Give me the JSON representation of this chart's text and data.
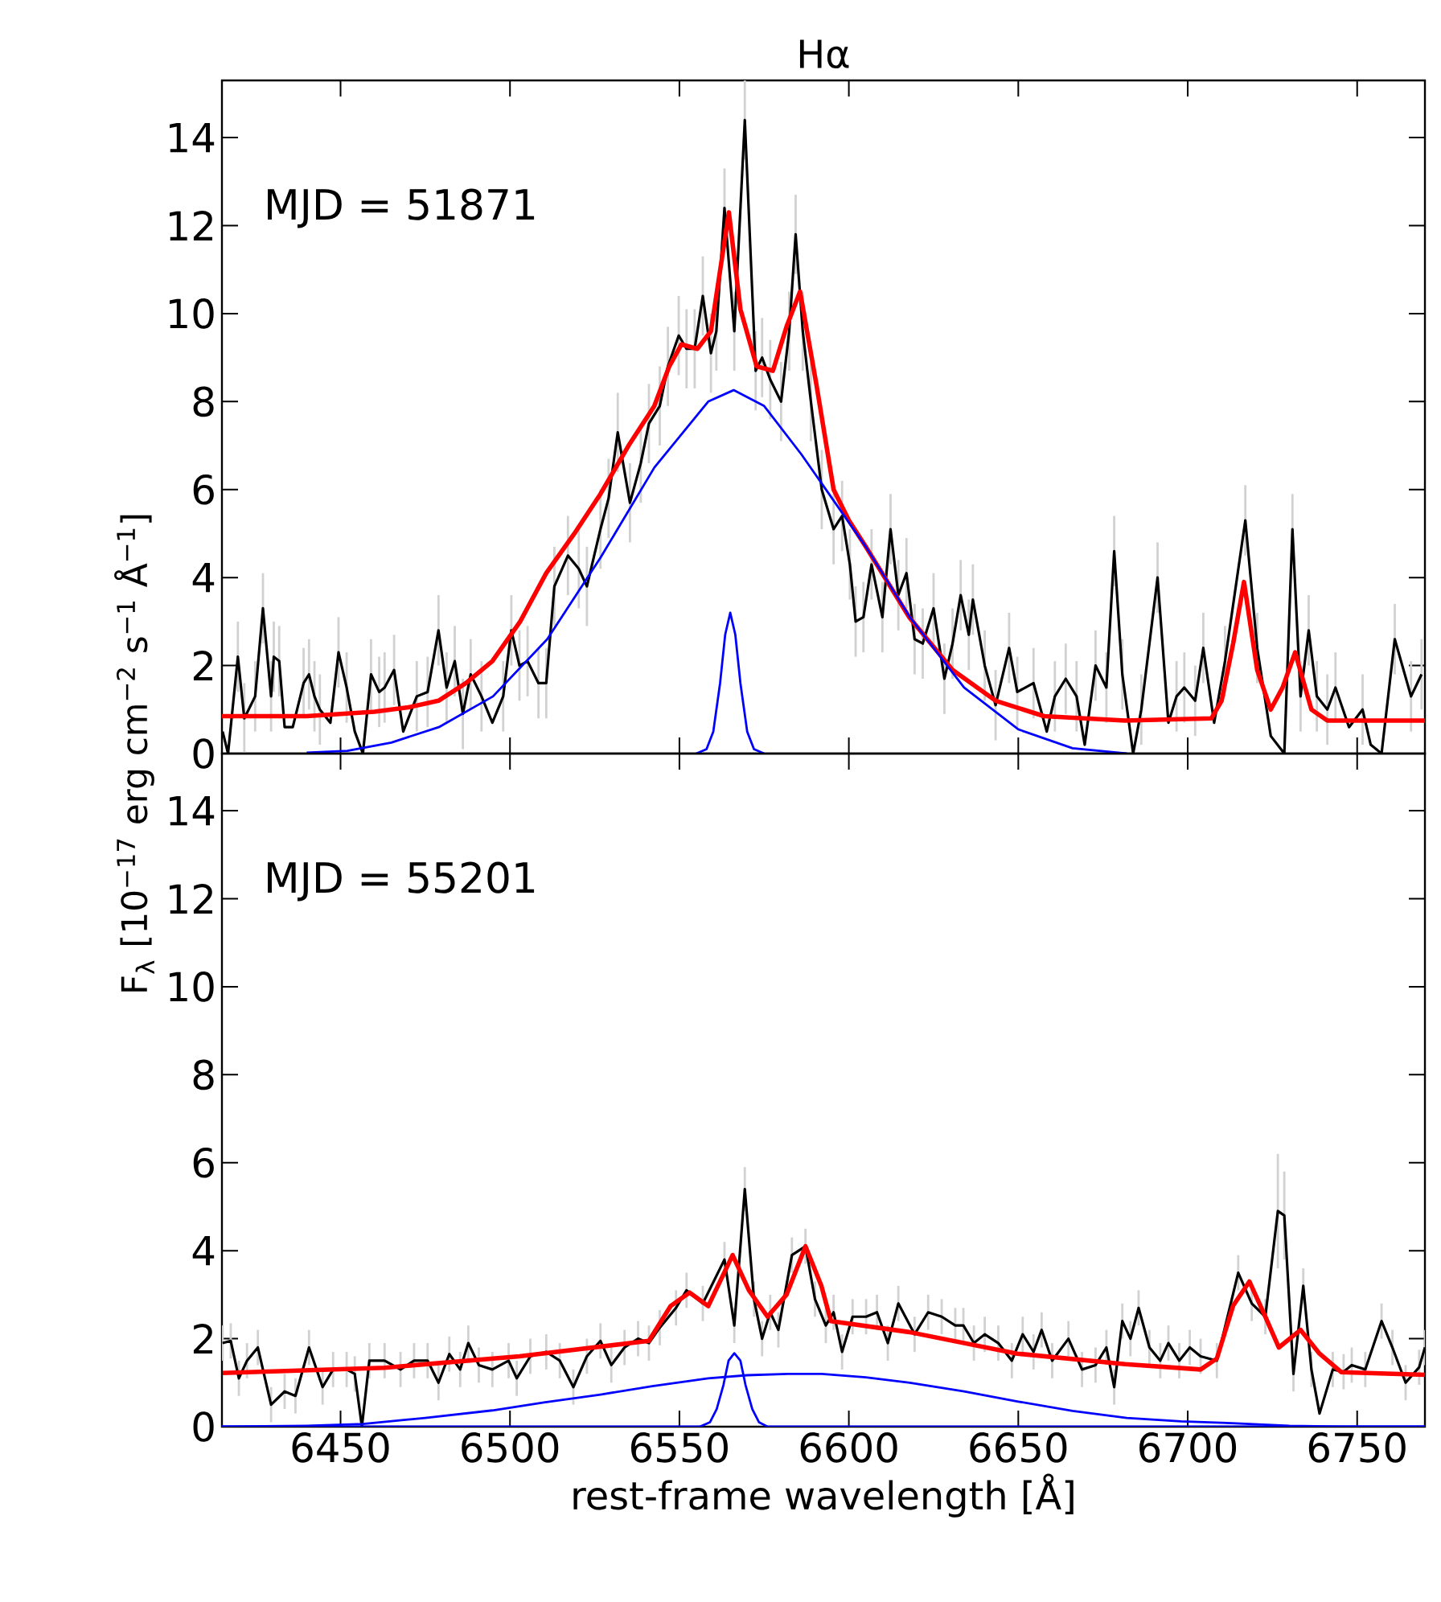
{
  "chart_data": [
    {
      "type": "line",
      "title": "Hα",
      "ylabel": "F$_{λ}$  [10$^{−17}$ erg cm$^{−2}$ s$^{−1}$ Å$^{−1}$]",
      "annotations": [
        "MJD = 51871"
      ],
      "xlim": [
        6415,
        6770
      ],
      "ylim": [
        0,
        15.3
      ],
      "xticks": [
        6450,
        6500,
        6550,
        6600,
        6650,
        6700,
        6750
      ],
      "yticks": [
        0,
        2,
        4,
        6,
        8,
        10,
        12,
        14
      ],
      "tick_labels": "y",
      "series": [
        {
          "color": "#000000",
          "x": [
            6415.2,
            6416.8,
            6419.7,
            6421.6,
            6424.8,
            6427.1,
            6429.5,
            6430.3,
            6431.9,
            6433.5,
            6435.9,
            6439.1,
            6440.7,
            6442.3,
            6443.9,
            6447.0,
            6449.4,
            6451.8,
            6454.2,
            6456.6,
            6459.0,
            6461.4,
            6463.0,
            6465.8,
            6468.5,
            6472.5,
            6475.7,
            6478.9,
            6481.3,
            6483.7,
            6486.1,
            6488.4,
            6491.6,
            6494.8,
            6498.0,
            6500.4,
            6502.8,
            6505.2,
            6508.4,
            6510.7,
            6513.1,
            6517.1,
            6520.3,
            6522.7,
            6526.7,
            6529.1,
            6531.8,
            6535.4,
            6538.6,
            6541.0,
            6544.2,
            6546.6,
            6549.8,
            6552.1,
            6554.5,
            6556.9,
            6559.3,
            6560.9,
            6563.3,
            6566.2,
            6569.3,
            6572.5,
            6574.4,
            6576.8,
            6580.0,
            6582.4,
            6584.3,
            6586.4,
            6588.8,
            6592.0,
            6595.5,
            6598.0,
            6600.3,
            6602.0,
            6604.3,
            6606.7,
            6609.9,
            6612.3,
            6614.6,
            6617.0,
            6619.4,
            6621.8,
            6625.0,
            6628.2,
            6630.6,
            6633.0,
            6635.4,
            6636.6,
            6640.1,
            6643.3,
            6647.3,
            6649.7,
            6654.5,
            6658.4,
            6660.8,
            6664.0,
            6667.2,
            6669.6,
            6672.8,
            6676.0,
            6678.3,
            6680.7,
            6683.9,
            6686.3,
            6691.1,
            6694.3,
            6696.7,
            6699.0,
            6702.2,
            6704.6,
            6707.8,
            6711.0,
            6717.0,
            6720.5,
            6724.5,
            6728.5,
            6730.9,
            6733.3,
            6735.7,
            6738.1,
            6741.2,
            6743.6,
            6747.6,
            6751.6,
            6754.0,
            6757.2,
            6761.1,
            6765.9,
            6769.0
          ],
          "values": [
            0.5,
            0,
            2.2,
            0.8,
            1.3,
            3.3,
            1.3,
            2.2,
            2.1,
            0.6,
            0.6,
            1.6,
            1.8,
            1.3,
            1.0,
            0.7,
            2.3,
            1.5,
            0.5,
            0,
            1.8,
            1.4,
            1.5,
            1.9,
            0.5,
            1.3,
            1.4,
            2.8,
            1.5,
            2.1,
            0.9,
            1.8,
            1.3,
            0.7,
            1.3,
            2.8,
            2.0,
            2.1,
            1.6,
            1.6,
            3.8,
            4.5,
            4.2,
            3.8,
            5.1,
            5.8,
            7.3,
            5.7,
            6.6,
            7.5,
            7.9,
            8.8,
            9.5,
            9.2,
            9.2,
            10.4,
            9.1,
            9.6,
            12.4,
            9.6,
            14.4,
            8.7,
            9.0,
            8.5,
            8.0,
            9.6,
            11.8,
            9.6,
            8.0,
            6.0,
            5.1,
            5.4,
            4.3,
            3.0,
            3.1,
            4.3,
            3.1,
            5.1,
            3.6,
            4.1,
            2.6,
            2.5,
            3.3,
            1.7,
            2.5,
            3.6,
            2.7,
            3.5,
            2.0,
            1.1,
            2.4,
            1.4,
            1.6,
            0.5,
            1.3,
            1.7,
            1.3,
            0.2,
            2.0,
            1.5,
            4.6,
            1.8,
            0,
            1.0,
            4.0,
            0.7,
            1.3,
            1.5,
            1.2,
            2.4,
            0.7,
            2.1,
            5.3,
            2.4,
            0.4,
            0,
            5.1,
            1.3,
            2.8,
            1.3,
            1.0,
            1.5,
            0.6,
            1.0,
            0.2,
            0,
            2.6,
            1.3,
            1.8
          ],
          "errors": [
            null,
            null,
            0.8,
            0.8,
            0.8,
            0.8,
            0.8,
            0.8,
            0.8,
            null,
            null,
            0.8,
            0.8,
            0.8,
            0.8,
            null,
            0.8,
            0.8,
            null,
            null,
            0.8,
            0.8,
            0.8,
            0.8,
            null,
            0.8,
            0.8,
            0.8,
            0.8,
            0.8,
            0.8,
            0.8,
            0.8,
            null,
            0.8,
            0.8,
            0.8,
            0.8,
            0.8,
            0.8,
            0.9,
            0.9,
            0.9,
            0.9,
            0.9,
            0.9,
            0.9,
            0.9,
            0.9,
            0.9,
            0.9,
            0.9,
            0.9,
            0.9,
            0.9,
            0.9,
            0.9,
            0.9,
            0.9,
            0.9,
            0.9,
            0.9,
            0.9,
            0.9,
            0.9,
            0.9,
            0.9,
            0.9,
            0.9,
            0.9,
            0.8,
            0.8,
            0.8,
            0.8,
            0.8,
            0.8,
            0.8,
            0.8,
            0.8,
            0.8,
            0.8,
            0.8,
            0.8,
            0.8,
            0.8,
            0.8,
            0.8,
            0.8,
            0.8,
            0.8,
            0.8,
            0.8,
            0.8,
            null,
            0.8,
            0.8,
            0.8,
            null,
            0.8,
            0.8,
            0.8,
            0.8,
            null,
            0.8,
            0.8,
            null,
            0.8,
            0.8,
            0.8,
            0.8,
            null,
            0.8,
            0.8,
            0.8,
            null,
            null,
            0.8,
            0.8,
            0.8,
            0.8,
            0.8,
            0.8,
            null,
            0.8,
            null,
            null,
            0.8,
            0.8,
            0.8
          ]
        },
        {
          "color": "#ff0000",
          "x": [
            6415,
            6440,
            6460,
            6470,
            6478.9,
            6487,
            6494.8,
            6503,
            6510.7,
            6519,
            6526.7,
            6535,
            6542.6,
            6547,
            6550.6,
            6555.3,
            6559.3,
            6564.6,
            6568,
            6572.8,
            6577.6,
            6581.6,
            6585.6,
            6590.4,
            6595.5,
            6600,
            6605,
            6617.8,
            6630.6,
            6643.3,
            6657.6,
            6681.5,
            6707,
            6710,
            6713.4,
            6716.6,
            6720.5,
            6724.5,
            6728,
            6731.7,
            6736.5,
            6741.2,
            6770
          ],
          "values": [
            0.85,
            0.85,
            0.95,
            1.05,
            1.2,
            1.6,
            2.1,
            3.0,
            4.1,
            5.0,
            5.9,
            7.0,
            7.9,
            8.8,
            9.3,
            9.2,
            9.6,
            12.3,
            10.1,
            8.8,
            8.7,
            9.7,
            10.5,
            8.4,
            6.0,
            5.3,
            4.7,
            3.1,
            1.9,
            1.2,
            0.85,
            0.75,
            0.8,
            1.2,
            2.5,
            3.9,
            1.9,
            1.0,
            1.5,
            2.3,
            1.0,
            0.75,
            0.75
          ]
        },
        {
          "color": "#0000ff",
          "x": [
            6440,
            6452,
            6465,
            6479,
            6495,
            6511,
            6526.7,
            6542.6,
            6558.5,
            6566,
            6575,
            6586,
            6605,
            6618,
            6634,
            6650,
            6666,
            6682
          ],
          "values": [
            0.02,
            0.06,
            0.25,
            0.6,
            1.3,
            2.6,
            4.45,
            6.5,
            8.0,
            8.26,
            7.9,
            6.8,
            4.7,
            3.1,
            1.5,
            0.55,
            0.12,
            0
          ]
        },
        {
          "color": "#0000ff",
          "x": [
            6555,
            6558,
            6560,
            6562,
            6563.5,
            6565,
            6566.5,
            6568,
            6570,
            6572,
            6575
          ],
          "values": [
            0,
            0.1,
            0.5,
            1.6,
            2.7,
            3.2,
            2.7,
            1.6,
            0.5,
            0.1,
            0
          ]
        }
      ]
    },
    {
      "type": "line",
      "xlabel": "rest-frame wavelength [Å]",
      "annotations": [
        "MJD = 55201"
      ],
      "xlim": [
        6415,
        6770
      ],
      "ylim": [
        0,
        15.3
      ],
      "xticks": [
        6450,
        6500,
        6550,
        6600,
        6650,
        6700,
        6750
      ],
      "yticks": [
        0,
        2,
        4,
        6,
        8,
        10,
        12,
        14
      ],
      "series": [
        {
          "color": "#000000",
          "x": [
            6415.2,
            6417.6,
            6420.0,
            6422.4,
            6425.6,
            6429.5,
            6433.5,
            6436.7,
            6440.7,
            6444.7,
            6447.8,
            6451.8,
            6454.2,
            6456.3,
            6458.5,
            6463.0,
            6467.7,
            6471.7,
            6475.7,
            6478.9,
            6482.1,
            6485.3,
            6487.7,
            6490.8,
            6494.8,
            6499.6,
            6502.0,
            6506.0,
            6510.7,
            6514.7,
            6518.7,
            6522.7,
            6526.7,
            6529.9,
            6533.8,
            6537.8,
            6541.0,
            6544.2,
            6549.0,
            6552.1,
            6556.9,
            6563.3,
            6566.2,
            6569.3,
            6572.0,
            6574.4,
            6576.8,
            6579.2,
            6583.2,
            6587.2,
            6590.0,
            6593.2,
            6595.5,
            6598.0,
            6601.1,
            6605.1,
            6608.3,
            6611.5,
            6614.6,
            6619.4,
            6623.4,
            6627.4,
            6631.4,
            6633.8,
            6636.9,
            6640.1,
            6644.1,
            6648.1,
            6651.3,
            6654.5,
            6656.9,
            6660.0,
            6664.8,
            6668.8,
            6672.8,
            6676.0,
            6678.3,
            6680.7,
            6683.1,
            6685.5,
            6688.7,
            6691.9,
            6694.3,
            6697.5,
            6700.6,
            6703.8,
            6708.6,
            6714.9,
            6718.9,
            6722.9,
            6726.6,
            6728.5,
            6731.2,
            6734.1,
            6736.5,
            6738.9,
            6742.8,
            6746.0,
            6748.4,
            6752.4,
            6757.2,
            6760.4,
            6764.3,
            6768.3,
            6770.0
          ],
          "values": [
            1.9,
            1.95,
            1.1,
            1.5,
            1.8,
            0.5,
            0.8,
            0.7,
            1.8,
            0.9,
            1.3,
            1.3,
            1.2,
            0,
            1.5,
            1.5,
            1.3,
            1.5,
            1.5,
            1.0,
            1.65,
            1.3,
            1.9,
            1.4,
            1.3,
            1.5,
            1.1,
            1.6,
            1.7,
            1.5,
            0.9,
            1.6,
            1.95,
            1.4,
            1.8,
            2.0,
            1.9,
            2.25,
            2.7,
            3.1,
            2.8,
            3.8,
            2.3,
            5.4,
            2.9,
            2.0,
            2.6,
            2.2,
            3.9,
            4.1,
            2.9,
            2.3,
            2.6,
            1.7,
            2.5,
            2.5,
            2.6,
            1.9,
            2.8,
            2.1,
            2.6,
            2.5,
            2.3,
            2.3,
            1.9,
            2.1,
            1.9,
            1.5,
            2.1,
            1.7,
            2.2,
            1.5,
            2.0,
            1.3,
            1.4,
            1.8,
            0.9,
            2.4,
            2.0,
            2.7,
            1.8,
            1.5,
            1.9,
            1.5,
            1.8,
            1.6,
            1.5,
            3.5,
            2.8,
            2.5,
            4.9,
            4.8,
            1.2,
            3.2,
            1.3,
            0.3,
            1.3,
            1.25,
            1.4,
            1.3,
            2.4,
            1.8,
            1.0,
            1.35,
            1.8
          ],
          "errors": [
            0.4,
            0.4,
            0.4,
            0.4,
            0.4,
            0.4,
            0.4,
            0.4,
            0.4,
            0.4,
            0.4,
            0.4,
            0.4,
            null,
            0.4,
            0.4,
            0.4,
            0.4,
            0.4,
            0.4,
            0.4,
            0.4,
            0.4,
            0.4,
            0.4,
            0.4,
            0.4,
            0.4,
            0.4,
            0.4,
            0.4,
            0.4,
            0.4,
            0.4,
            0.4,
            0.4,
            0.4,
            0.4,
            0.4,
            0.4,
            0.4,
            0.4,
            0.4,
            0.5,
            0.4,
            0.4,
            0.4,
            0.4,
            0.4,
            0.4,
            0.4,
            0.4,
            0.4,
            0.4,
            0.4,
            0.4,
            0.4,
            0.4,
            0.4,
            0.4,
            0.4,
            0.4,
            0.4,
            0.4,
            0.4,
            0.4,
            0.4,
            0.4,
            0.4,
            0.4,
            0.4,
            0.4,
            0.4,
            0.4,
            0.4,
            0.4,
            0.4,
            0.4,
            0.4,
            0.4,
            0.4,
            0.4,
            0.4,
            0.4,
            0.4,
            0.4,
            0.4,
            0.4,
            0.4,
            0.4,
            1.3,
            1.0,
            0.4,
            0.4,
            0.4,
            null,
            0.4,
            0.4,
            0.4,
            0.4,
            0.4,
            0.4,
            0.4,
            0.4,
            0.4
          ]
        },
        {
          "color": "#ff0000",
          "x": [
            6415.2,
            6463,
            6502.8,
            6541,
            6547.4,
            6553,
            6558.5,
            6565.7,
            6570.5,
            6576,
            6581.6,
            6587.2,
            6591.9,
            6594.7,
            6617.8,
            6649.7,
            6681.5,
            6703.8,
            6708.6,
            6713.4,
            6718.2,
            6722.9,
            6726.9,
            6733.3,
            6738.9,
            6745.3,
            6770
          ],
          "values": [
            1.22,
            1.34,
            1.6,
            1.95,
            2.74,
            3.05,
            2.74,
            3.9,
            3.1,
            2.5,
            3.0,
            4.1,
            3.2,
            2.4,
            2.15,
            1.66,
            1.42,
            1.3,
            1.55,
            2.75,
            3.3,
            2.5,
            1.8,
            2.2,
            1.66,
            1.24,
            1.18
          ]
        },
        {
          "color": "#0000ff",
          "x": [
            6415,
            6440,
            6456.6,
            6475,
            6494.8,
            6510,
            6526.7,
            6542,
            6558.5,
            6570,
            6582,
            6592,
            6605,
            6618,
            6634,
            6650,
            6666,
            6682,
            6698,
            6713,
            6730,
            6745,
            6770
          ],
          "values": [
            0,
            0.02,
            0.06,
            0.2,
            0.37,
            0.55,
            0.73,
            0.92,
            1.1,
            1.17,
            1.2,
            1.2,
            1.12,
            1.0,
            0.8,
            0.57,
            0.36,
            0.2,
            0.12,
            0.08,
            0.02,
            0,
            0
          ]
        },
        {
          "color": "#0000ff",
          "x": [
            6415,
            6556,
            6559,
            6561,
            6563,
            6564.5,
            6566.2,
            6568,
            6569.5,
            6571.5,
            6573.5,
            6576,
            6770
          ],
          "values": [
            0,
            0,
            0.1,
            0.4,
            0.95,
            1.5,
            1.67,
            1.5,
            0.95,
            0.4,
            0.1,
            0,
            0
          ]
        }
      ]
    }
  ]
}
